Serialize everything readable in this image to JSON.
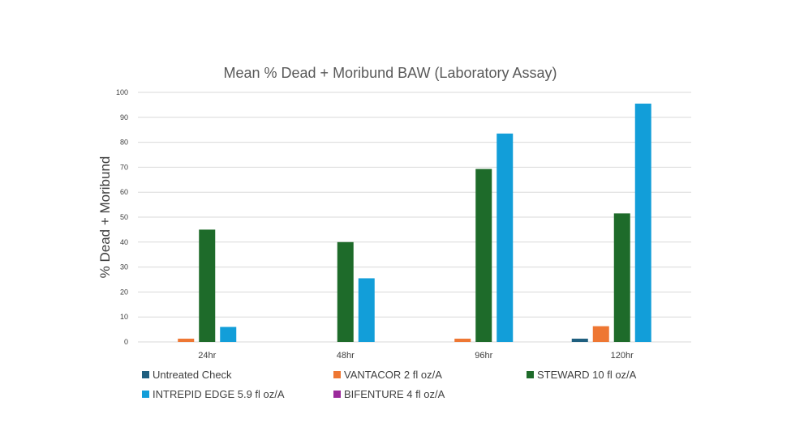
{
  "chart_data": {
    "type": "bar",
    "title": "Mean % Dead + Moribund BAW (Laboratory Assay)",
    "xlabel": "",
    "ylabel": "% Dead + Moribund",
    "ylim": [
      0,
      100
    ],
    "yticks": [
      0,
      10,
      20,
      30,
      40,
      50,
      60,
      70,
      80,
      90,
      100
    ],
    "grid": true,
    "legend_position": "bottom",
    "categories": [
      "24hr",
      "48hr",
      "96hr",
      "120hr"
    ],
    "series": [
      {
        "name": "Untreated Check",
        "color": "#1f5f7f",
        "values": [
          0,
          0,
          0,
          1.3
        ]
      },
      {
        "name": "VANTACOR 2 fl oz/A",
        "color": "#ee7733",
        "values": [
          1.3,
          0,
          1.3,
          6.3
        ]
      },
      {
        "name": "STEWARD 10 fl oz/A",
        "color": "#1e6b2a",
        "values": [
          45,
          40,
          69.3,
          51.5
        ]
      },
      {
        "name": "INTREPID EDGE 5.9 fl oz/A",
        "color": "#129ed9",
        "values": [
          6,
          25.5,
          83.5,
          95.5
        ]
      },
      {
        "name": "BIFENTURE 4 fl oz/A",
        "color": "#9b2a9b",
        "values": [
          0,
          0,
          0,
          0
        ]
      }
    ]
  }
}
